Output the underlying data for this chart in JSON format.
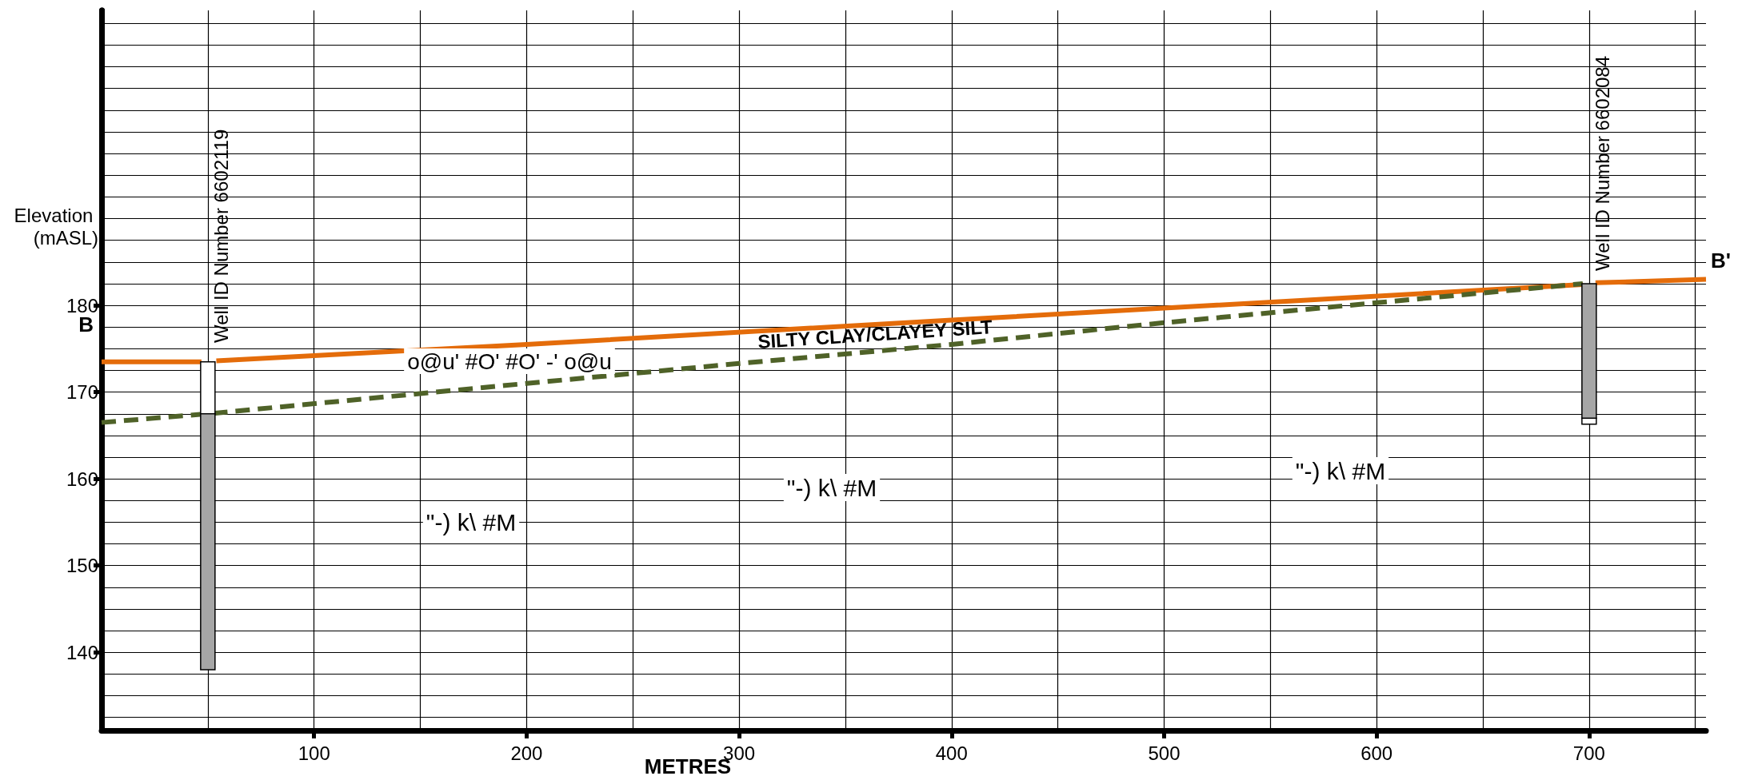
{
  "chart_data": {
    "type": "line",
    "xlabel": "METRES",
    "ylabel": "Elevation (mASL)",
    "xlim": [
      0,
      755
    ],
    "ylim": [
      131,
      214
    ],
    "xticks": [
      {
        "value": 50,
        "label": null
      },
      100,
      {
        "value": 150,
        "label": null
      },
      200,
      {
        "value": 250,
        "label": null
      },
      300,
      {
        "value": 350,
        "label": null
      },
      400,
      {
        "value": 450,
        "label": null
      },
      500,
      {
        "value": 550,
        "label": null
      },
      600,
      {
        "value": 650,
        "label": null
      },
      700,
      {
        "value": 750,
        "label": null
      }
    ],
    "yticks": [
      {
        "value": 132.5,
        "label": null
      },
      {
        "value": 135,
        "label": null
      },
      {
        "value": 137.5,
        "label": null
      },
      140,
      {
        "value": 142.5,
        "label": null
      },
      {
        "value": 145,
        "label": null
      },
      {
        "value": 147.5,
        "label": null
      },
      150,
      {
        "value": 152.5,
        "label": null
      },
      {
        "value": 155,
        "label": null
      },
      {
        "value": 157.5,
        "label": null
      },
      160,
      {
        "value": 162.5,
        "label": null
      },
      {
        "value": 165,
        "label": null
      },
      {
        "value": 167.5,
        "label": null
      },
      170,
      {
        "value": 172.5,
        "label": null
      },
      {
        "value": 175,
        "label": null
      },
      {
        "value": 177.5,
        "label": null
      },
      180,
      {
        "value": 182.5,
        "label": null
      },
      {
        "value": 185,
        "label": null
      },
      {
        "value": 187.5,
        "label": null
      },
      {
        "value": 190,
        "label": null
      },
      {
        "value": 192.5,
        "label": null
      },
      {
        "value": 195,
        "label": null
      },
      {
        "value": 197.5,
        "label": null
      },
      {
        "value": 200,
        "label": null
      },
      {
        "value": 202.5,
        "label": null
      },
      {
        "value": 205,
        "label": null
      },
      {
        "value": 207.5,
        "label": null
      },
      {
        "value": 210,
        "label": null
      },
      {
        "value": 212.5,
        "label": null
      }
    ],
    "grid": true,
    "marker": "none",
    "series": [
      {
        "color": "#e46c0a",
        "line_style": "solid",
        "x": [
          0,
          47,
          50,
          54,
          200,
          400,
          697,
          700,
          703,
          755
        ],
        "values": [
          173.5,
          173.5,
          null,
          173.6,
          175.5,
          178.3,
          182.4,
          null,
          182.6,
          183
        ]
      },
      {
        "color": "#4f6228",
        "line_style": "dashed",
        "x": [
          0,
          50,
          200,
          300,
          400,
          500,
          600,
          697
        ],
        "values": [
          166.5,
          167.5,
          171,
          173.3,
          175.5,
          178,
          180.3,
          182.5
        ]
      },
      {
        "type": "bar",
        "color": "#ffffff",
        "x": [
          50,
          700
        ],
        "base": [
          167.5,
          166.3
        ],
        "values": [
          6,
          0.7
        ]
      },
      {
        "type": "bar",
        "color": "#a6a6a6",
        "x": [
          50,
          700
        ],
        "base": [
          138,
          167
        ],
        "values": [
          29.5,
          15.5
        ]
      }
    ],
    "annotations": [
      "Well ID Number 6602119",
      "Well ID Number 6602084",
      "B",
      "B'",
      "SILTY CLAY/CLAYEY SILT",
      "o@u' #O' #O' -' o@u",
      "\"-) k\\ #M",
      "\"-) k\\ #M",
      "\"-) k\\ #M"
    ]
  }
}
